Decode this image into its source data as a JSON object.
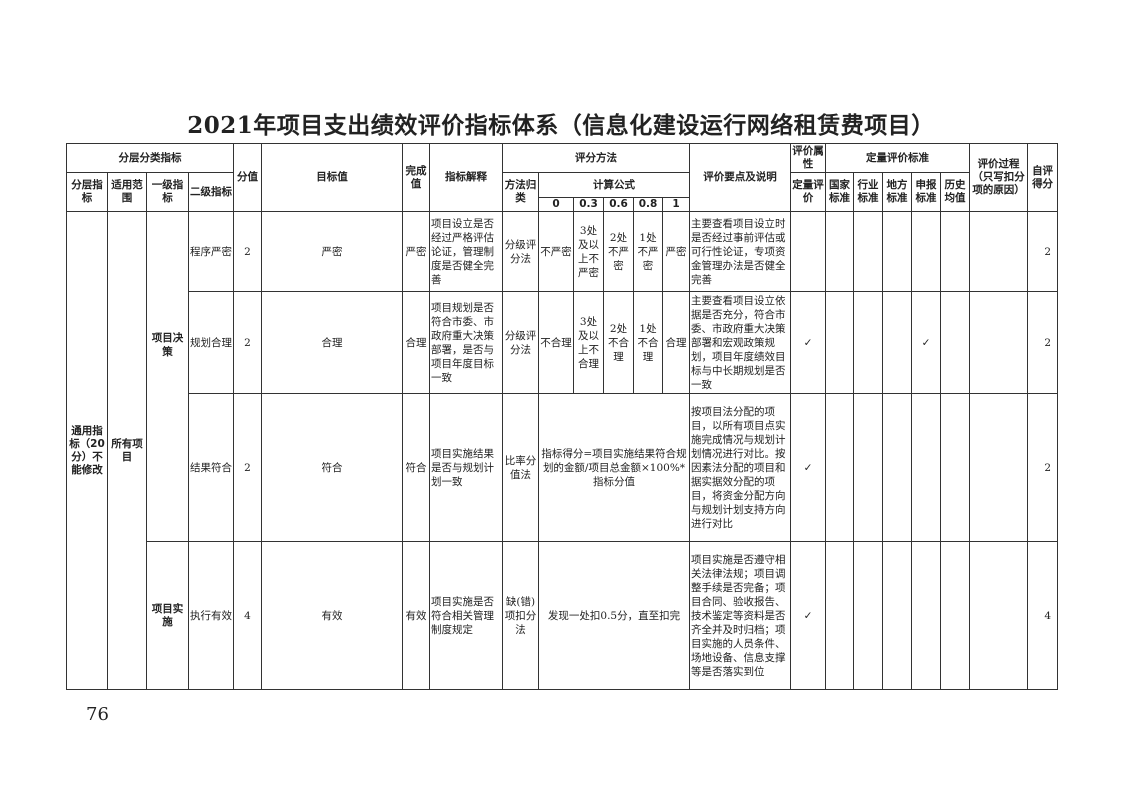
{
  "title": "2021年项目支出绩效评价指标体系（信息化建设运行网络租赁费项目）",
  "page_number": "76",
  "header": {
    "classification": "分层分类指标",
    "layer": "分层指标",
    "scope": "适用范围",
    "level1": "一级指标",
    "level2": "二级指标",
    "score": "分值",
    "target": "目标值",
    "actual": "完成值",
    "explain": "指标解释",
    "method": "评分方法",
    "method_type": "方法归类",
    "formula": "计算公式",
    "f0": "0",
    "f1": "0.3",
    "f2": "0.6",
    "f3": "0.8",
    "f4": "1",
    "key_points": "评价要点及说明",
    "attr": "评价属性",
    "quant": "定量评价",
    "standard": "定量评价标准",
    "national": "国家标准",
    "industry": "行业标准",
    "local": "地方标准",
    "declared": "申报标准",
    "history": "历史均值",
    "process": "评价过程（只写扣分项的原因）",
    "self_score": "自评得分"
  },
  "groups": {
    "layer": "通用指标（20分）不能修改",
    "scope": "所有项目",
    "decision": "项目决策",
    "implementation": "项目实施"
  },
  "check_mark": "✓",
  "rows": [
    {
      "level2": "程序严密",
      "score": "2",
      "target": "严密",
      "actual": "严密",
      "explain": "项目设立是否经过严格评估论证，管理制度是否健全完善",
      "method_type": "分级评分法",
      "f": [
        "不严密",
        "3处及以上不严密",
        "2处不严密",
        "1处不严密",
        "严密"
      ],
      "key_points": "主要查看项目设立时是否经过事前评估或可行性论证，专项资金管理办法是否健全完善",
      "quant": "",
      "declared": "",
      "self_score": "2"
    },
    {
      "level2": "规划合理",
      "score": "2",
      "target": "合理",
      "actual": "合理",
      "explain": "项目规划是否符合市委、市政府重大决策部署，是否与项目年度目标一致",
      "method_type": "分级评分法",
      "f": [
        "不合理",
        "3处及以上不合理",
        "2处不合理",
        "1处不合理",
        "合理"
      ],
      "key_points": "主要查看项目设立依据是否充分，符合市委、市政府重大决策部署和宏观政策规划，项目年度绩效目标与中长期规划是否一致",
      "quant": "✓",
      "declared": "✓",
      "self_score": "2"
    },
    {
      "level2": "结果符合",
      "score": "2",
      "target": "符合",
      "actual": "符合",
      "explain": "项目实施结果是否与规划计划一致",
      "method_type": "比率分值法",
      "formula": "指标得分=项目实施结果符合规划的金额/项目总金额×100%*指标分值",
      "key_points": "按项目法分配的项目，以所有项目点实施完成情况与规划计划情况进行对比。按因素法分配的项目和据实据效分配的项目，将资金分配方向与规划计划支持方向进行对比",
      "quant": "✓",
      "declared": "",
      "self_score": "2"
    },
    {
      "level2": "执行有效",
      "score": "4",
      "target": "有效",
      "actual": "有效",
      "explain": "项目实施是否符合相关管理制度规定",
      "method_type": "缺(错)项扣分法",
      "formula": "发现一处扣0.5分，直至扣完",
      "key_points": "项目实施是否遵守相关法律法规；项目调整手续是否完备；项目合同、验收报告、技术鉴定等资料是否齐全并及时归档；项目实施的人员条件、场地设备、信息支撑等是否落实到位",
      "quant": "✓",
      "declared": "",
      "self_score": "4"
    }
  ]
}
